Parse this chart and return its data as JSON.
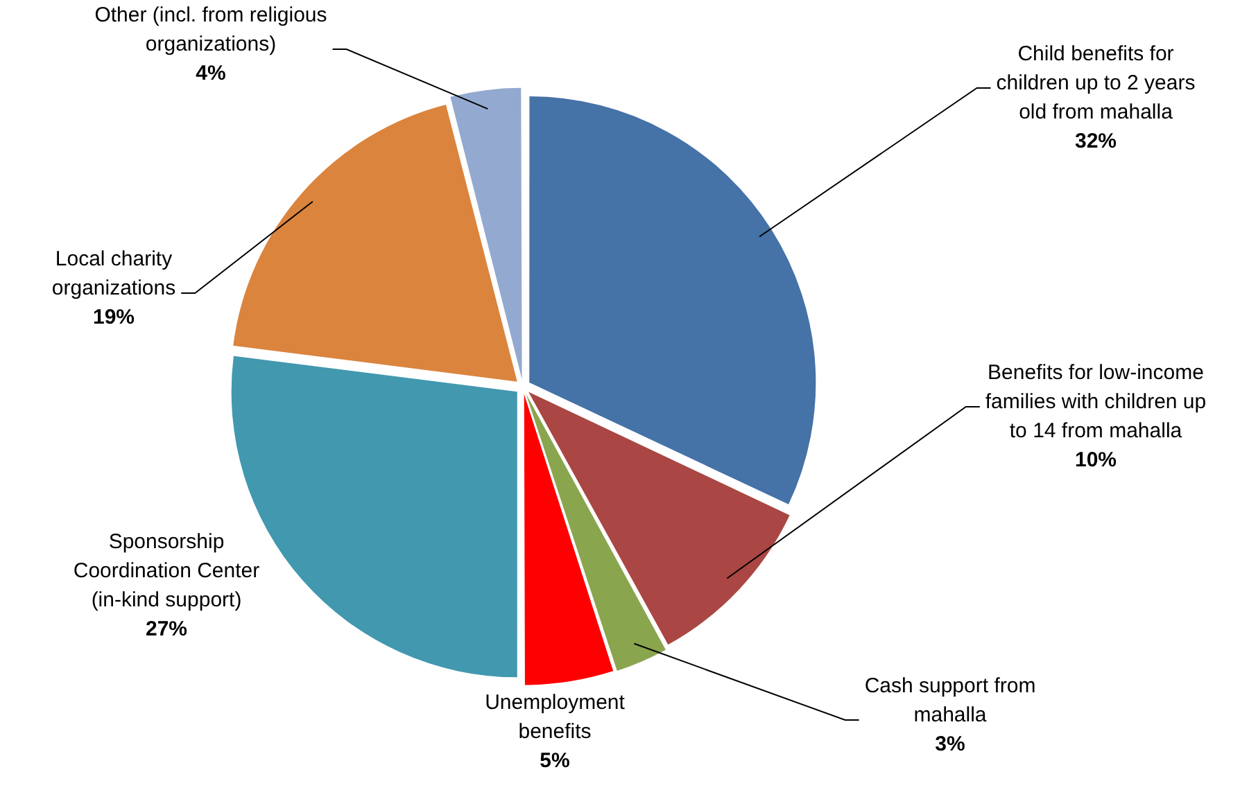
{
  "chart_data": {
    "type": "pie",
    "categories": [
      "Child benefits for children up to 2 years old from mahalla",
      "Benefits for low-income families with children up to 14 from mahalla",
      "Cash support from mahalla",
      "Unemployment benefits",
      "Sponsorship Coordination Center (in-kind support)",
      "Local charity organizations",
      "Other  (incl. from religious organizations)"
    ],
    "values": [
      32,
      10,
      3,
      5,
      27,
      19,
      4
    ],
    "value_labels": [
      "32%",
      "10%",
      "3%",
      "5%",
      "27%",
      "19%",
      "4%"
    ],
    "colors": [
      "#4572a7",
      "#aa4643",
      "#89a54e",
      "#ff0000",
      "#4198af",
      "#db843d",
      "#93a9cf"
    ],
    "legend": false
  }
}
